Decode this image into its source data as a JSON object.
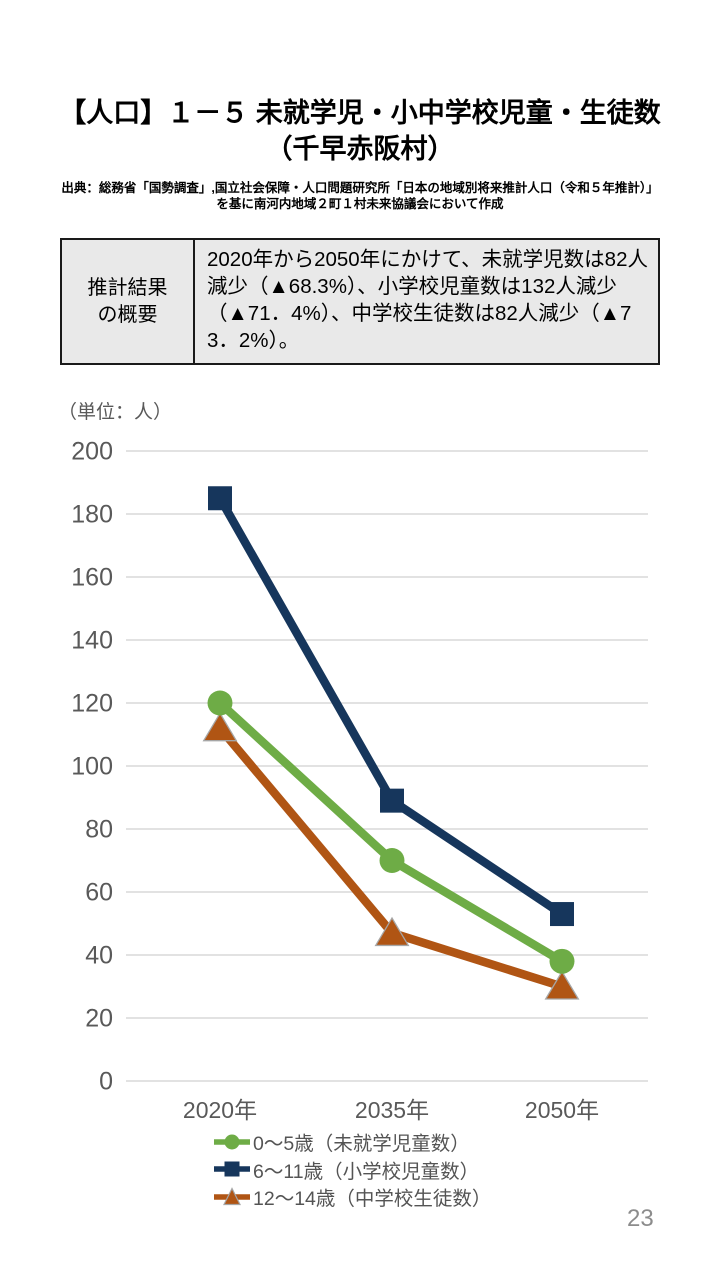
{
  "page": {
    "title_line1": "【人口】１－５ 未就学児・小中学校児童・生徒数",
    "title_line2": "（千早赤阪村）",
    "source_line1": "出典：総務省「国勢調査」,国立社会保障・人口問題研究所「日本の地域別将来推計人口（令和５年推計）」",
    "source_line2": "を基に南河内地域２町１村未来協議会において作成",
    "page_number": "23"
  },
  "summary": {
    "label_line1": "推計結果",
    "label_line2": "の概要",
    "text": "2020年から2050年にかけて、未就学児数は82人減少（▲68.3%）、小学校児童数は132人減少（▲71．4%）、中学校生徒数は82人減少（▲73．2%）。"
  },
  "chart_data": {
    "type": "line",
    "unit_label": "（単位：人）",
    "categories": [
      "2020年",
      "2035年",
      "2050年"
    ],
    "series": [
      {
        "name": "0～5歳（未就学児童数）",
        "values": [
          120,
          70,
          38
        ],
        "color": "#6eac46",
        "marker": "circle"
      },
      {
        "name": "6～11歳（小学校児童数）",
        "values": [
          185,
          89,
          53
        ],
        "color": "#16365c",
        "marker": "square"
      },
      {
        "name": "12～14歳（中学校生徒数）",
        "values": [
          112,
          47,
          30
        ],
        "color": "#b05514",
        "marker": "triangle"
      }
    ],
    "ylim": [
      0,
      200
    ],
    "ytick_step": 20,
    "grid": true,
    "legend_position": "bottom",
    "colors": {
      "gridline": "#d9d9d9",
      "tick_label": "#595959",
      "marker_outline": "#a6a6a6"
    }
  }
}
